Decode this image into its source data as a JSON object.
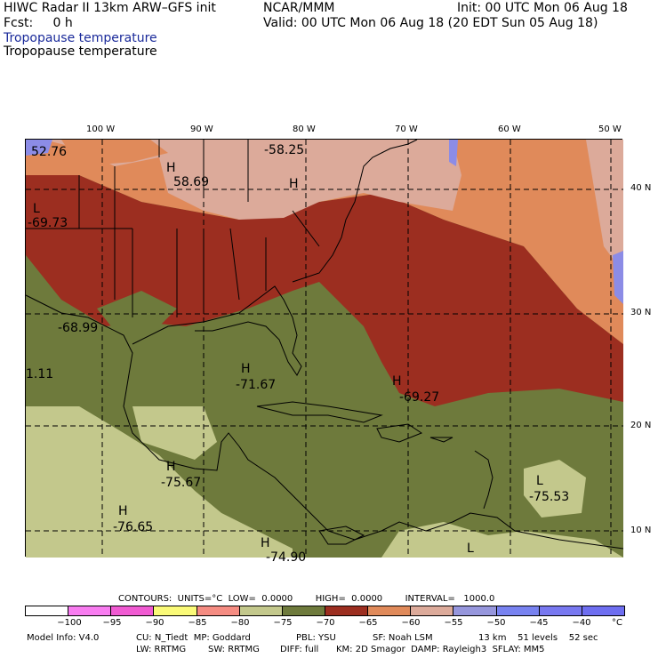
{
  "header": {
    "line1_left": "HIWC Radar II 13km ARW–GFS init",
    "line1_center": "NCAR/MMM",
    "line1_right": "Init: 00 UTC Mon 06 Aug 18",
    "line2_left": "Fcst:     0 h",
    "line2_right": "Valid: 00 UTC Mon 06 Aug 18 (20 EDT Sun 05 Aug 18)",
    "field1": "Tropopause temperature",
    "field2": "Tropopause temperature"
  },
  "lon_labels": [
    "100 W",
    "90 W",
    "80 W",
    "70 W",
    "60 W",
    "50 W"
  ],
  "lat_labels": [
    "40 N",
    "30 N",
    "20 N",
    "10 N"
  ],
  "map_labels": [
    {
      "text": "52.76"
    },
    {
      "text": "-58.25"
    },
    {
      "text": "H"
    },
    {
      "text": "58.69"
    },
    {
      "text": "H"
    },
    {
      "text": "L"
    },
    {
      "text": "-69.73"
    },
    {
      "text": "-68.99"
    },
    {
      "text": "1.11"
    },
    {
      "text": "H"
    },
    {
      "text": "-71.67"
    },
    {
      "text": "H"
    },
    {
      "text": "-69.27"
    },
    {
      "text": "H"
    },
    {
      "text": "-75.67"
    },
    {
      "text": "H"
    },
    {
      "text": "-76.65"
    },
    {
      "text": "L"
    },
    {
      "text": "-75.53"
    },
    {
      "text": "L"
    },
    {
      "text": "H"
    },
    {
      "text": "-74.90"
    }
  ],
  "contour_info": "CONTOURS:  UNITS=°C  LOW=  0.0000        HIGH=  0.0000        INTERVAL=   1000.0",
  "colorbar": {
    "colors": [
      "#ffffff",
      "#f87cf0",
      "#f05ad2",
      "#fafa78",
      "#f58c82",
      "#c3c88c",
      "#6e7a3c",
      "#9c2e20",
      "#e08a5a",
      "#dcaa9a",
      "#9696dc",
      "#7882f0",
      "#7878f0",
      "#6e6ef0"
    ],
    "ticks": [
      "−100",
      "−95",
      "−90",
      "−85",
      "−80",
      "−75",
      "−70",
      "−65",
      "−60",
      "−55",
      "−50",
      "−45",
      "−40"
    ],
    "unit": "°C"
  },
  "footer": {
    "l1a": "Model Info: V4.0",
    "l1b": "CU: N_Tiedt  MP: Goddard",
    "l1c": "PBL: YSU",
    "l1d": "SF: Noah LSM",
    "l1e": "13 km    51 levels    52 sec",
    "l2a": "LW: RRTMG",
    "l2b": "SW: RRTMG",
    "l2c": "DIFF: full",
    "l2d": "KM: 2D Smagor  DAMP: Rayleigh3  SFLAY: MM5"
  },
  "colors": {
    "dark_red": "#9c2e20",
    "olive": "#6e7a3c",
    "light_olive": "#c3c88c",
    "orange": "#e08a5a",
    "pink": "#dcaa9a",
    "blue_purple": "#8c8ce6"
  }
}
